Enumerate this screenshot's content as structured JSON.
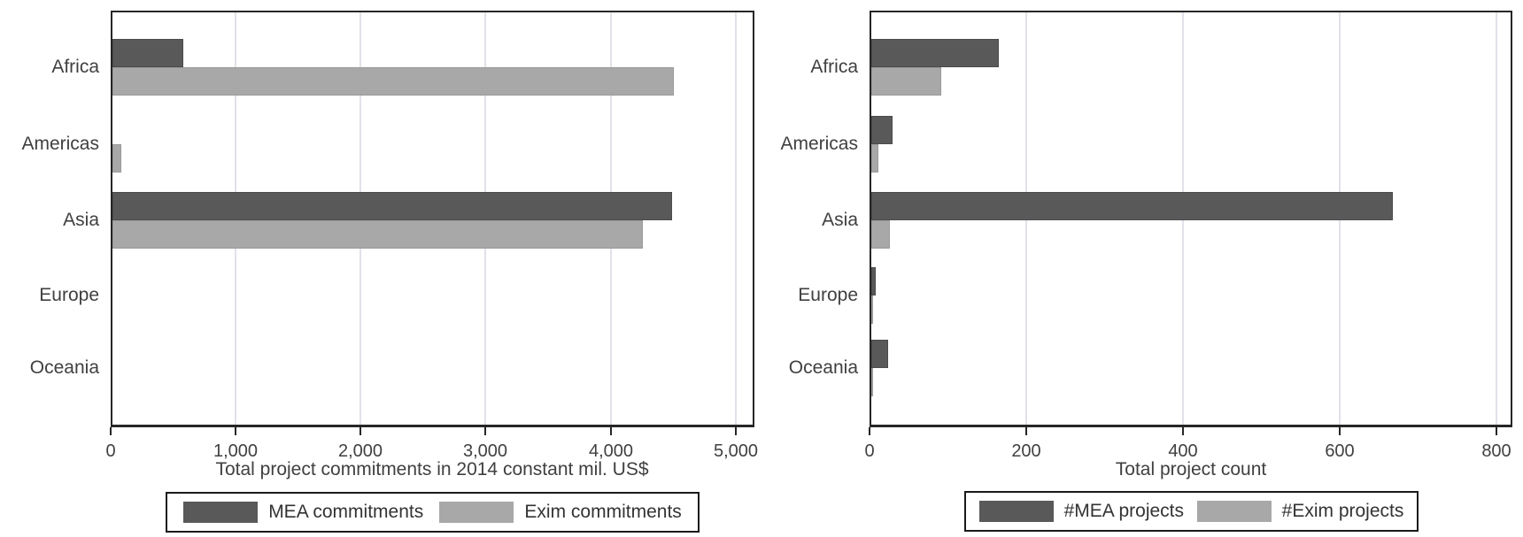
{
  "figure": {
    "background": "#ffffff",
    "description": "Two horizontal grouped bar charts comparing MEA and Exim by continent"
  },
  "colors": {
    "dark_series": "#595959",
    "light_series": "#a8a8a8",
    "axis": "#262626",
    "gridline": "#e2e1ea",
    "text": "#404040"
  },
  "chart_data": [
    {
      "type": "bar",
      "orientation": "horizontal",
      "xlabel": "Total project commitments in 2014 constant mil. US$",
      "categories": [
        "Africa",
        "Americas",
        "Asia",
        "Europe",
        "Oceania"
      ],
      "series": [
        {
          "name": "MEA commitments",
          "color": "#595959",
          "values": [
            570,
            0,
            4480,
            0,
            0
          ]
        },
        {
          "name": "Exim commitments",
          "color": "#a8a8a8",
          "values": [
            4490,
            70,
            4240,
            0,
            0
          ]
        }
      ],
      "xlim": [
        0,
        5150
      ],
      "xticks": [
        0,
        1000,
        2000,
        3000,
        4000,
        5000
      ],
      "xtick_labels": [
        "0",
        "1,000",
        "2,000",
        "3,000",
        "4,000",
        "5,000"
      ],
      "grid": true,
      "legend_position": "bottom"
    },
    {
      "type": "bar",
      "orientation": "horizontal",
      "xlabel": "Total project count",
      "categories": [
        "Africa",
        "Americas",
        "Asia",
        "Europe",
        "Oceania"
      ],
      "series": [
        {
          "name": "#MEA projects",
          "color": "#595959",
          "values": [
            163,
            27,
            665,
            6,
            21
          ]
        },
        {
          "name": "#Exim projects",
          "color": "#a8a8a8",
          "values": [
            89,
            9,
            24,
            1,
            1
          ]
        }
      ],
      "xlim": [
        0,
        820
      ],
      "xticks": [
        0,
        200,
        400,
        600,
        800
      ],
      "xtick_labels": [
        "0",
        "200",
        "400",
        "600",
        "800"
      ],
      "grid": true,
      "legend_position": "bottom"
    }
  ]
}
